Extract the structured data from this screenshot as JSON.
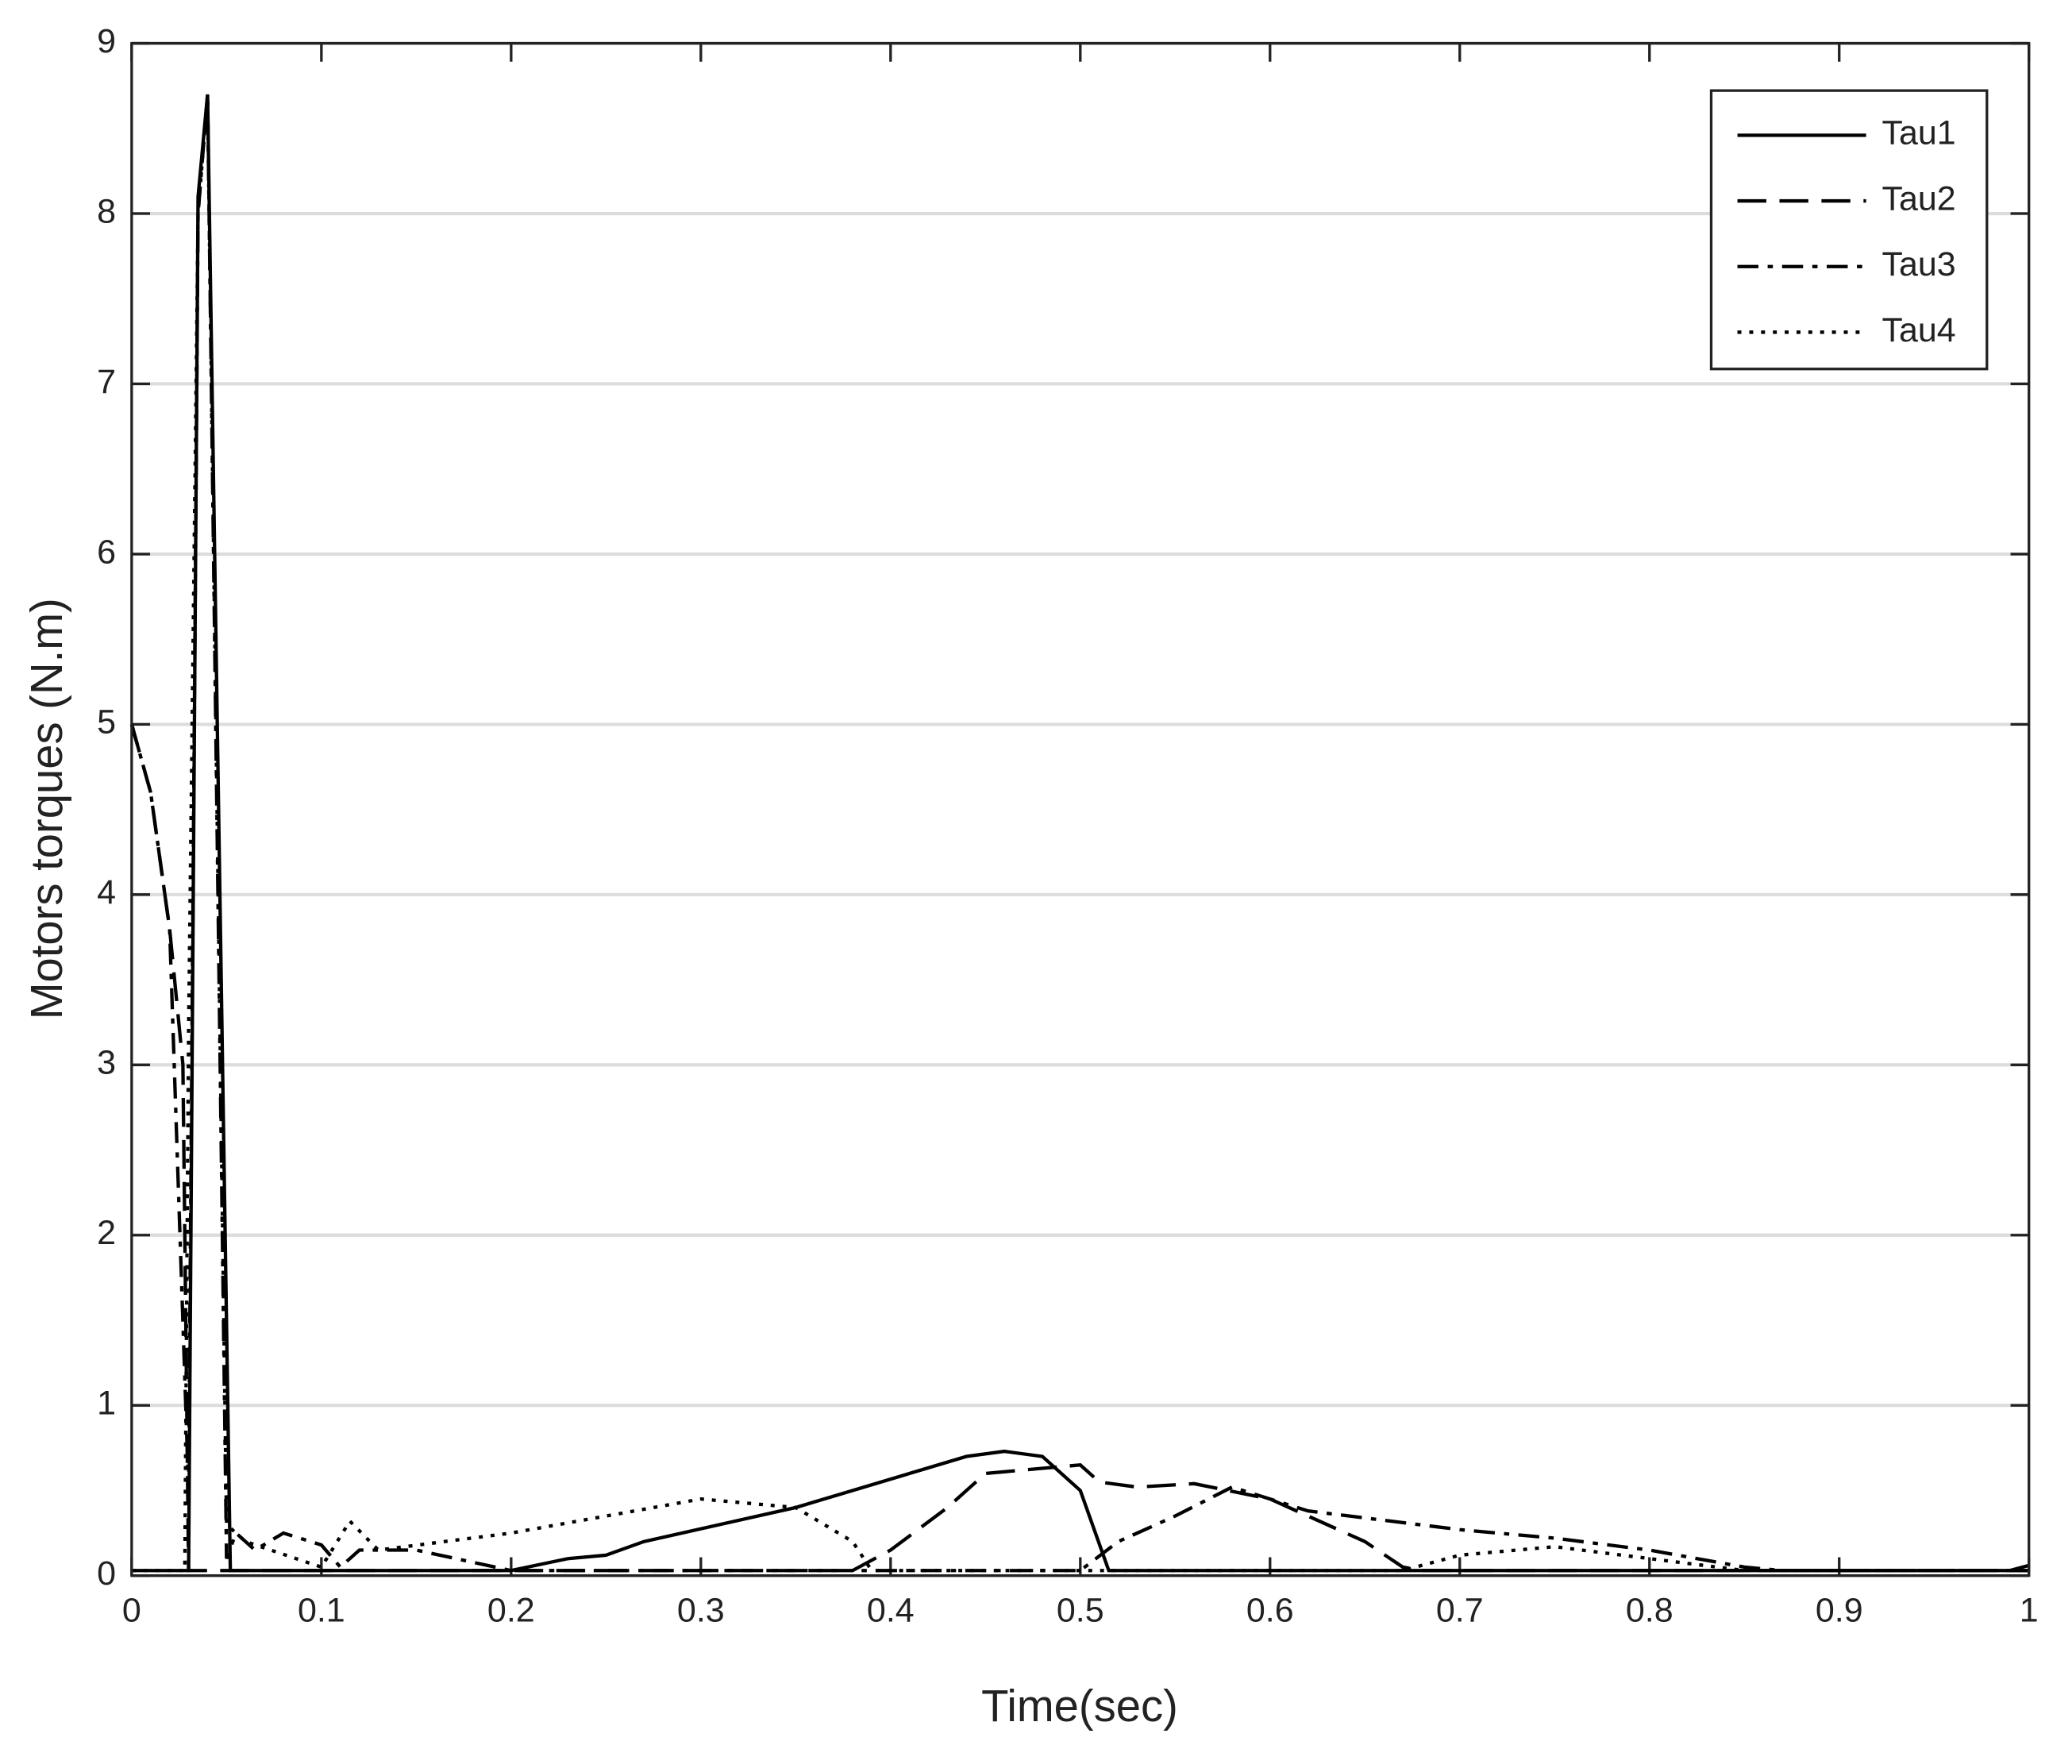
{
  "chart_data": {
    "type": "line",
    "x_label": "Time(sec)",
    "y_label": "Motors torques (N.m)",
    "xlim": [
      0,
      1
    ],
    "ylim": [
      0,
      9
    ],
    "xticks": [
      0,
      0.1,
      0.2,
      0.3,
      0.4,
      0.5,
      0.6,
      0.7,
      0.8,
      0.9,
      1
    ],
    "yticks": [
      0,
      1,
      2,
      3,
      4,
      5,
      6,
      7,
      8,
      9
    ],
    "grid": true,
    "legend": "upper right",
    "series": [
      {
        "name": "Tau1",
        "color": "#000000",
        "dash": "solid",
        "x": [
          0,
          0.03,
          0.035,
          0.04,
          0.052,
          0.2,
          0.23,
          0.25,
          0.27,
          0.31,
          0.35,
          0.38,
          0.41,
          0.44,
          0.46,
          0.48,
          0.5,
          0.515,
          0.99,
          1
        ],
        "values": [
          0.03,
          0.03,
          8.1,
          8.7,
          0.03,
          0.03,
          0.1,
          0.12,
          0.2,
          0.3,
          0.4,
          0.5,
          0.6,
          0.7,
          0.73,
          0.7,
          0.5,
          0.03,
          0.03,
          0.06
        ]
      },
      {
        "name": "Tau2",
        "color": "#000000",
        "dash": "dashed",
        "x": [
          0,
          0.01,
          0.02,
          0.027,
          0.03,
          0.38,
          0.4,
          0.43,
          0.45,
          0.5,
          0.51,
          0.53,
          0.56,
          0.6,
          0.65,
          0.67,
          0.68,
          1
        ],
        "values": [
          5,
          4.6,
          3.8,
          3,
          0.03,
          0.03,
          0.15,
          0.4,
          0.6,
          0.65,
          0.55,
          0.52,
          0.54,
          0.45,
          0.2,
          0.05,
          0.03,
          0.03
        ]
      },
      {
        "name": "Tau3",
        "color": "#000000",
        "dash": "dashdot",
        "x": [
          0,
          0.01,
          0.02,
          0.03,
          0.035,
          0.04,
          0.05,
          0.055,
          0.065,
          0.08,
          0.1,
          0.11,
          0.12,
          0.15,
          0.2,
          0.5,
          0.52,
          0.55,
          0.58,
          0.62,
          0.7,
          0.75,
          0.8,
          0.85,
          0.87,
          1
        ],
        "values": [
          5,
          4.6,
          3.8,
          0.5,
          8,
          8.7,
          0.1,
          0.25,
          0.15,
          0.25,
          0.18,
          0.05,
          0.15,
          0.15,
          0.03,
          0.03,
          0.2,
          0.35,
          0.52,
          0.38,
          0.27,
          0.22,
          0.15,
          0.05,
          0.03,
          0.03
        ]
      },
      {
        "name": "Tau4",
        "color": "#000000",
        "dash": "dotted",
        "x": [
          0,
          0.028,
          0.03,
          0.035,
          0.04,
          0.05,
          0.06,
          0.1,
          0.115,
          0.13,
          0.2,
          0.3,
          0.35,
          0.38,
          0.39,
          0.67,
          0.7,
          0.75,
          0.8,
          0.85,
          1
        ],
        "values": [
          0.03,
          0.03,
          3.2,
          8,
          8.7,
          0.3,
          0.2,
          0.05,
          0.32,
          0.15,
          0.25,
          0.45,
          0.4,
          0.2,
          0.03,
          0.03,
          0.12,
          0.17,
          0.1,
          0.03,
          0.03
        ]
      }
    ]
  }
}
